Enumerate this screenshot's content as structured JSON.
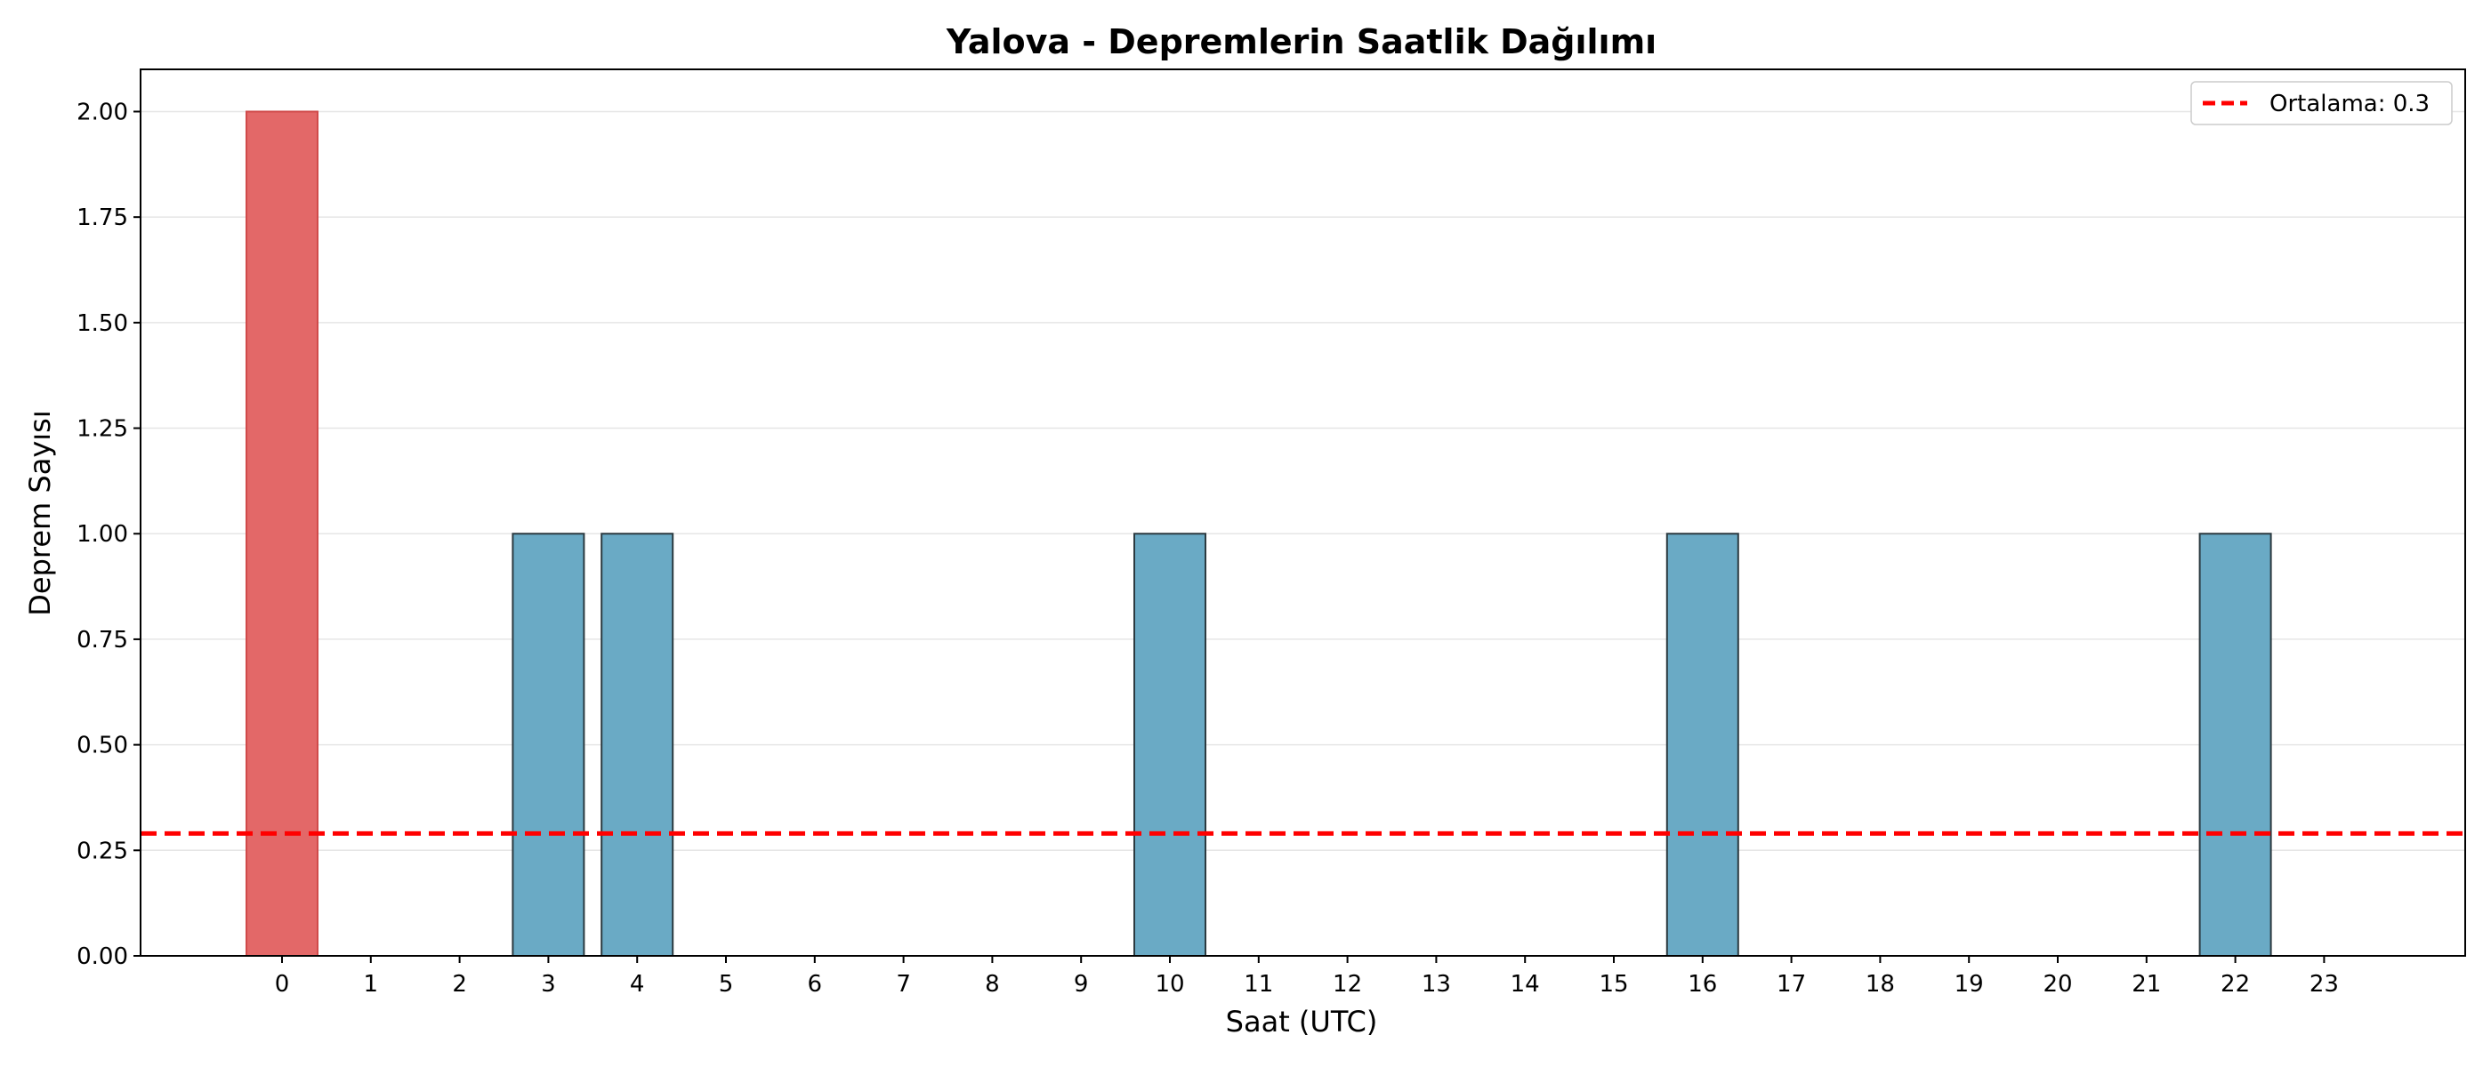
{
  "chart_data": {
    "type": "bar",
    "title": "Yalova - Depremlerin Saatlik Dağılımı",
    "xlabel": "Saat (UTC)",
    "ylabel": "Deprem Sayısı",
    "categories": [
      "0",
      "1",
      "2",
      "3",
      "4",
      "5",
      "6",
      "7",
      "8",
      "9",
      "10",
      "11",
      "12",
      "13",
      "14",
      "15",
      "16",
      "17",
      "18",
      "19",
      "20",
      "21",
      "22",
      "23"
    ],
    "values": [
      2,
      0,
      0,
      1,
      1,
      0,
      0,
      0,
      0,
      0,
      1,
      0,
      0,
      0,
      0,
      0,
      1,
      0,
      0,
      0,
      0,
      0,
      1,
      0
    ],
    "highlight_index": 0,
    "ylim": [
      0,
      2.1
    ],
    "yticks": [
      "0.00",
      "0.25",
      "0.50",
      "0.75",
      "1.00",
      "1.25",
      "1.50",
      "1.75",
      "2.00"
    ],
    "mean_line": {
      "value": 0.29,
      "label": "Ortalama: 0.3",
      "color": "#ff0000"
    },
    "grid": "y",
    "legend_position": "top-right",
    "colors": {
      "bar": "#6aaac5",
      "bar_edge": "#2b3a40",
      "highlight": "#e36868",
      "highlight_edge": "#d04a4a"
    }
  }
}
